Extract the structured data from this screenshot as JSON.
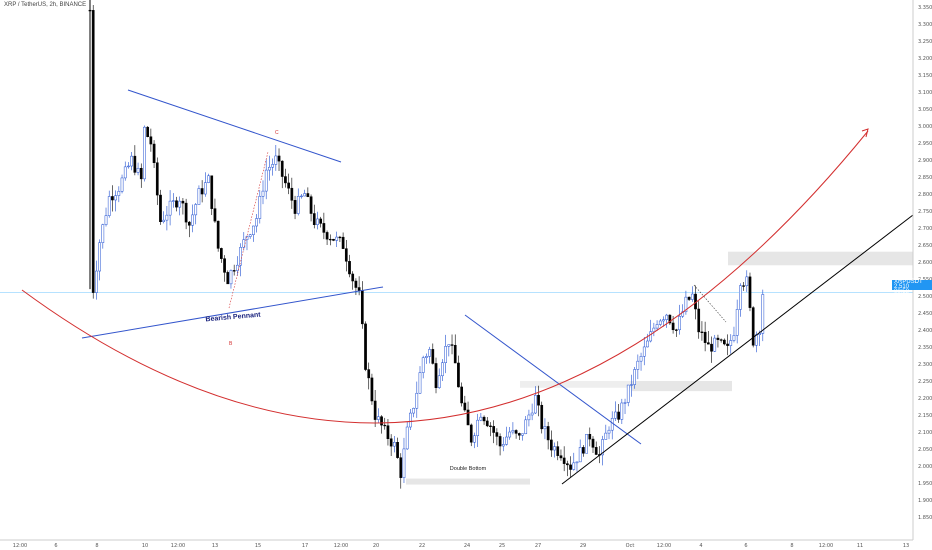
{
  "header": {
    "symbol": "XRP / TetherUS, 2h, BINANCE"
  },
  "colors": {
    "up": "#1f4fd1",
    "down": "#000000",
    "trend": "#3355cc",
    "curve": "#d32f2f",
    "support": "#000000",
    "zone": "#e6e6e6",
    "priceLine": "#6ec6ff"
  },
  "price_tag": {
    "top": "XRPUSDT",
    "value": "2.510",
    "sub": "00:58"
  },
  "chart_data": {
    "type": "candlestick",
    "title": "XRP / TetherUS, 2h, BINANCE",
    "xlabel": "",
    "ylabel": "",
    "ylim": [
      1.8,
      3.37
    ],
    "grid": false,
    "y_ticks": [
      "1.850",
      "1.900",
      "1.950",
      "2.000",
      "2.050",
      "2.100",
      "2.150",
      "2.200",
      "2.250",
      "2.300",
      "2.350",
      "2.400",
      "2.450",
      "2.500",
      "2.550",
      "2.600",
      "2.650",
      "2.700",
      "2.750",
      "2.800",
      "2.850",
      "2.900",
      "2.950",
      "3.000",
      "3.050",
      "3.100",
      "3.150",
      "3.200",
      "3.250",
      "3.300",
      "3.350"
    ],
    "x_ticks": [
      "12:00",
      "6",
      "8",
      "10",
      "12:00",
      "13",
      "15",
      "17",
      "12:00",
      "20",
      "22",
      "24",
      "25",
      "27",
      "29",
      "Oct",
      "12:00",
      "4",
      "6",
      "8",
      "12:00",
      "11",
      "13"
    ],
    "current_price": 2.51,
    "path": [
      [
        0,
        3.34
      ],
      [
        1,
        2.52
      ],
      [
        3,
        2.66
      ],
      [
        6,
        2.79
      ],
      [
        9,
        2.82
      ],
      [
        13,
        2.9
      ],
      [
        16,
        2.84
      ],
      [
        17,
        2.99
      ],
      [
        19,
        2.95
      ],
      [
        22,
        2.72
      ],
      [
        25,
        2.76
      ],
      [
        28,
        2.79
      ],
      [
        31,
        2.71
      ],
      [
        34,
        2.8
      ],
      [
        37,
        2.84
      ],
      [
        40,
        2.64
      ],
      [
        43,
        2.55
      ],
      [
        46,
        2.61
      ],
      [
        49,
        2.68
      ],
      [
        52,
        2.73
      ],
      [
        55,
        2.87
      ],
      [
        58,
        2.9
      ],
      [
        61,
        2.83
      ],
      [
        64,
        2.76
      ],
      [
        67,
        2.8
      ],
      [
        70,
        2.72
      ],
      [
        73,
        2.69
      ],
      [
        76,
        2.67
      ],
      [
        79,
        2.65
      ],
      [
        82,
        2.55
      ],
      [
        84,
        2.5
      ],
      [
        86,
        2.3
      ],
      [
        89,
        2.15
      ],
      [
        92,
        2.1
      ],
      [
        95,
        2.06
      ],
      [
        97,
        1.98
      ],
      [
        99,
        2.1
      ],
      [
        102,
        2.22
      ],
      [
        104,
        2.32
      ],
      [
        106,
        2.34
      ],
      [
        108,
        2.25
      ],
      [
        110,
        2.32
      ],
      [
        112,
        2.37
      ],
      [
        114,
        2.3
      ],
      [
        116,
        2.18
      ],
      [
        119,
        2.08
      ],
      [
        122,
        2.16
      ],
      [
        125,
        2.12
      ],
      [
        128,
        2.06
      ],
      [
        131,
        2.1
      ],
      [
        134,
        2.08
      ],
      [
        137,
        2.15
      ],
      [
        139,
        2.2
      ],
      [
        141,
        2.12
      ],
      [
        144,
        2.06
      ],
      [
        147,
        2.04
      ],
      [
        150,
        2.0
      ],
      [
        153,
        2.04
      ],
      [
        156,
        2.09
      ],
      [
        159,
        2.03
      ],
      [
        162,
        2.12
      ],
      [
        165,
        2.15
      ],
      [
        168,
        2.22
      ],
      [
        171,
        2.3
      ],
      [
        174,
        2.36
      ],
      [
        177,
        2.43
      ],
      [
        180,
        2.45
      ],
      [
        183,
        2.4
      ],
      [
        186,
        2.48
      ],
      [
        188,
        2.5
      ],
      [
        190,
        2.4
      ],
      [
        193,
        2.35
      ],
      [
        196,
        2.36
      ],
      [
        199,
        2.34
      ],
      [
        201,
        2.4
      ],
      [
        203,
        2.55
      ],
      [
        205,
        2.54
      ],
      [
        207,
        2.37
      ],
      [
        209,
        2.41
      ],
      [
        210,
        2.51
      ]
    ],
    "annotations": [
      {
        "text": "Bearish Pennant",
        "type": "label"
      },
      {
        "text": "Double Bottom",
        "type": "label"
      },
      {
        "text": "C",
        "type": "wave-label"
      },
      {
        "text": "B",
        "type": "wave-label"
      }
    ]
  },
  "labels": {
    "pennant": "Bearish Pennant",
    "double_bottom": "Double Bottom",
    "wave_c": "C",
    "wave_b": "B"
  }
}
